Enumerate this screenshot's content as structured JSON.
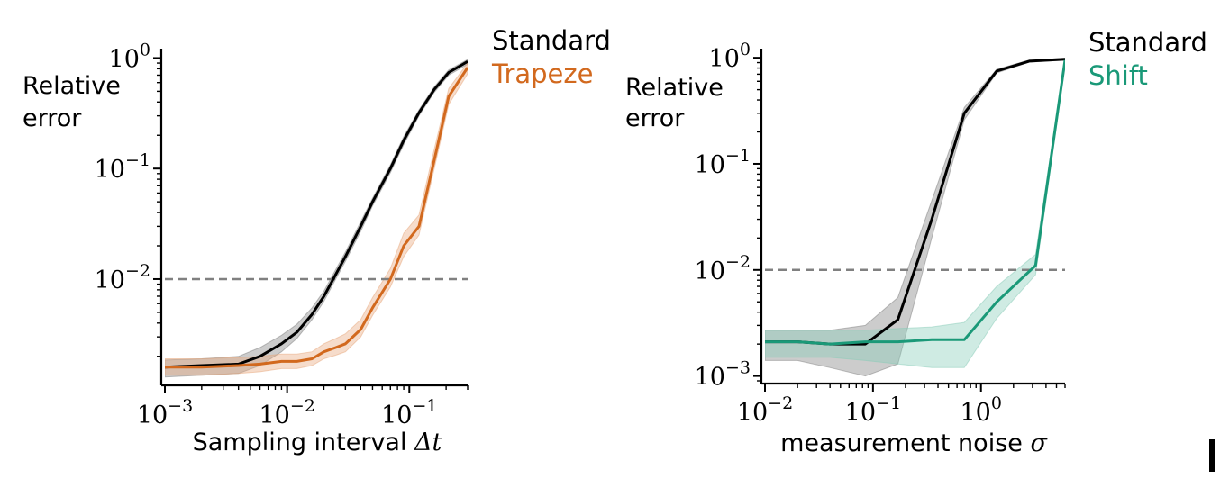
{
  "chart_data": [
    {
      "type": "line",
      "title": "",
      "xlabel": "Sampling interval",
      "xlabel_symbol": "Δt",
      "ylabel_lines": [
        "Relative",
        "error"
      ],
      "xscale": "log",
      "yscale": "log",
      "xlim": [
        0.001,
        0.3
      ],
      "ylim": [
        0.0012,
        1.15
      ],
      "xticks": [
        {
          "value": 0.001,
          "base": "10",
          "exp": "−3"
        },
        {
          "value": 0.01,
          "base": "10",
          "exp": "−2"
        },
        {
          "value": 0.1,
          "base": "10",
          "exp": "−1"
        }
      ],
      "yticks": [
        {
          "value": 0.01,
          "base": "10",
          "exp": "−2"
        },
        {
          "value": 0.1,
          "base": "10",
          "exp": "−1"
        },
        {
          "value": 1,
          "base": "10",
          "exp": "0"
        }
      ],
      "reference_line": {
        "y": 0.01,
        "color": "#808080",
        "style": "dashed"
      },
      "legend_position": "outside-top-right",
      "series": [
        {
          "name": "Standard",
          "color": "#000000",
          "band_color": "#808080",
          "x": [
            0.001,
            0.002,
            0.004,
            0.006,
            0.009,
            0.012,
            0.016,
            0.02,
            0.025,
            0.03,
            0.04,
            0.05,
            0.07,
            0.09,
            0.12,
            0.16,
            0.21,
            0.3
          ],
          "y": [
            0.0016,
            0.00165,
            0.0017,
            0.002,
            0.0026,
            0.0033,
            0.0048,
            0.007,
            0.011,
            0.016,
            0.03,
            0.05,
            0.1,
            0.18,
            0.32,
            0.52,
            0.74,
            0.93
          ],
          "lower": [
            0.0013,
            0.00135,
            0.0014,
            0.00165,
            0.0022,
            0.0029,
            0.0043,
            0.0063,
            0.01,
            0.0145,
            0.027,
            0.046,
            0.092,
            0.165,
            0.3,
            0.49,
            0.7,
            0.88
          ],
          "upper": [
            0.00185,
            0.0019,
            0.002,
            0.0024,
            0.0031,
            0.0039,
            0.0055,
            0.0078,
            0.0122,
            0.0176,
            0.033,
            0.054,
            0.108,
            0.195,
            0.34,
            0.55,
            0.78,
            0.97
          ]
        },
        {
          "name": "Trapeze",
          "color": "#d2691e",
          "band_color": "#e8a87c",
          "x": [
            0.001,
            0.002,
            0.004,
            0.006,
            0.009,
            0.012,
            0.016,
            0.02,
            0.025,
            0.03,
            0.04,
            0.05,
            0.07,
            0.09,
            0.12,
            0.16,
            0.21,
            0.3
          ],
          "y": [
            0.0016,
            0.0016,
            0.00165,
            0.0017,
            0.0018,
            0.0018,
            0.0019,
            0.0022,
            0.0024,
            0.0026,
            0.0035,
            0.0055,
            0.01,
            0.02,
            0.03,
            0.12,
            0.45,
            0.82
          ],
          "lower": [
            0.00135,
            0.00135,
            0.0014,
            0.00145,
            0.00155,
            0.00155,
            0.00165,
            0.0019,
            0.00205,
            0.0022,
            0.003,
            0.0047,
            0.0085,
            0.016,
            0.025,
            0.1,
            0.38,
            0.72
          ],
          "upper": [
            0.0019,
            0.0019,
            0.00195,
            0.002,
            0.0021,
            0.0021,
            0.0022,
            0.0026,
            0.0029,
            0.0032,
            0.0043,
            0.0068,
            0.0125,
            0.026,
            0.038,
            0.15,
            0.53,
            0.9
          ]
        }
      ]
    },
    {
      "type": "line",
      "title": "",
      "xlabel": "measurement noise",
      "xlabel_symbol": "σ",
      "ylabel_lines": [
        "Relative",
        "error"
      ],
      "xscale": "log",
      "yscale": "log",
      "xlim": [
        0.01,
        6
      ],
      "ylim": [
        0.0009,
        1.15
      ],
      "xticks": [
        {
          "value": 0.01,
          "base": "10",
          "exp": "−2"
        },
        {
          "value": 0.1,
          "base": "10",
          "exp": "−1"
        },
        {
          "value": 1,
          "base": "10",
          "exp": "0"
        }
      ],
      "yticks": [
        {
          "value": 0.001,
          "base": "10",
          "exp": "−3"
        },
        {
          "value": 0.01,
          "base": "10",
          "exp": "−2"
        },
        {
          "value": 0.1,
          "base": "10",
          "exp": "−1"
        },
        {
          "value": 1,
          "base": "10",
          "exp": "0"
        }
      ],
      "reference_line": {
        "y": 0.01,
        "color": "#808080",
        "style": "dashed"
      },
      "legend_position": "outside-top-right",
      "series": [
        {
          "name": "Standard",
          "color": "#000000",
          "band_color": "#808080",
          "x": [
            0.01,
            0.02,
            0.04,
            0.085,
            0.17,
            0.35,
            0.7,
            1.4,
            2.8,
            6
          ],
          "y": [
            0.0021,
            0.0021,
            0.002,
            0.002,
            0.0034,
            0.03,
            0.3,
            0.75,
            0.93,
            0.97
          ],
          "lower": [
            0.0014,
            0.0014,
            0.0012,
            0.001,
            0.0013,
            0.02,
            0.26,
            0.72,
            0.91,
            0.95
          ],
          "upper": [
            0.0027,
            0.0027,
            0.0027,
            0.003,
            0.0055,
            0.045,
            0.34,
            0.78,
            0.95,
            0.99
          ]
        },
        {
          "name": "Shift",
          "color": "#1a9978",
          "band_color": "#88ccb8",
          "x": [
            0.01,
            0.02,
            0.04,
            0.085,
            0.17,
            0.35,
            0.7,
            1.4,
            3.2,
            6
          ],
          "y": [
            0.0021,
            0.0021,
            0.002,
            0.0021,
            0.0021,
            0.0022,
            0.0022,
            0.005,
            0.011,
            0.95
          ],
          "lower": [
            0.0015,
            0.0015,
            0.0015,
            0.0014,
            0.0013,
            0.0012,
            0.0012,
            0.0035,
            0.009,
            0.85
          ],
          "upper": [
            0.0027,
            0.0027,
            0.0027,
            0.0027,
            0.0028,
            0.0029,
            0.0032,
            0.007,
            0.014,
            1.0
          ]
        }
      ]
    }
  ]
}
